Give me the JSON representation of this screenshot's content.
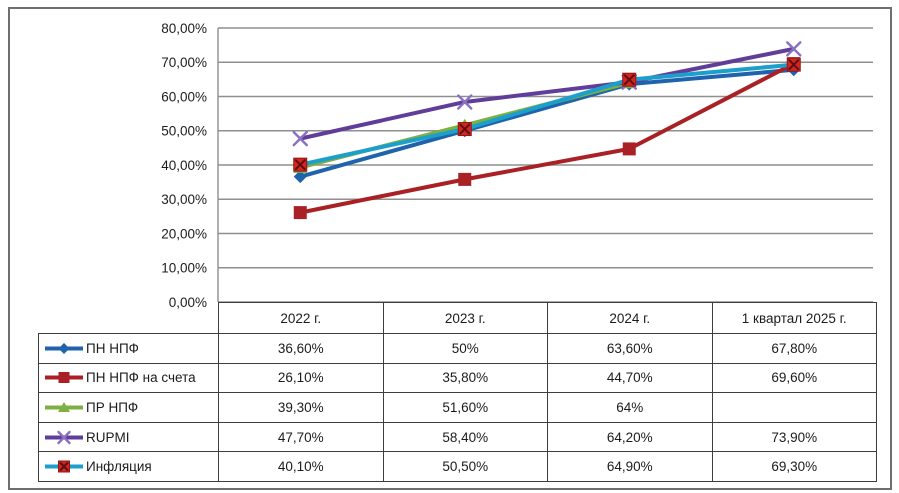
{
  "chart_data": {
    "type": "line",
    "title": "",
    "xlabel": "",
    "ylabel": "",
    "categories": [
      "2022 г.",
      "2023 г.",
      "2024 г.",
      "1 квартал 2025 г."
    ],
    "series": [
      {
        "name": "ПН НПФ",
        "color": "#1f63ad",
        "marker": "diamond",
        "marker_color": "#1f63ad",
        "values": [
          36.6,
          50,
          63.6,
          67.8
        ],
        "display": [
          "36,60%",
          "50%",
          "63,60%",
          "67,80%"
        ]
      },
      {
        "name": "ПН НПФ на счета",
        "color": "#a92125",
        "marker": "square",
        "marker_color": "#a92125",
        "values": [
          26.1,
          35.8,
          44.7,
          69.6
        ],
        "display": [
          "26,10%",
          "35,80%",
          "44,70%",
          "69,60%"
        ]
      },
      {
        "name": "ПР НПФ",
        "color": "#7cb042",
        "marker": "triangle",
        "marker_color": "#7cb042",
        "values": [
          39.3,
          51.6,
          64,
          null
        ],
        "display": [
          "39,30%",
          "51,60%",
          "64%",
          ""
        ]
      },
      {
        "name": "RUPMI",
        "color": "#5f3d99",
        "marker": "x",
        "marker_color": "#8a70c0",
        "values": [
          47.7,
          58.4,
          64.2,
          73.9
        ],
        "display": [
          "47,70%",
          "58,40%",
          "64,20%",
          "73,90%"
        ]
      },
      {
        "name": "Инфляция",
        "color": "#1d9fcc",
        "marker": "x-square",
        "marker_color": "#d62420",
        "values": [
          40.1,
          50.5,
          64.9,
          69.3
        ],
        "display": [
          "40,10%",
          "50,50%",
          "64,90%",
          "69,30%"
        ]
      }
    ],
    "ylim": [
      0,
      80
    ],
    "ytick_step": 10,
    "ytick_labels": [
      "0,00%",
      "10,00%",
      "20,00%",
      "30,00%",
      "40,00%",
      "50,00%",
      "60,00%",
      "70,00%",
      "80,00%"
    ],
    "grid": "horizontal-only",
    "legend_position": "data-table-left-column",
    "colors": {
      "gridline": "#8f8f8f",
      "table_border": "#3d3d3d",
      "frame_border": "#6f6f6f",
      "x_square_cross": "#5a1010",
      "x_square_edge": "#8c1616"
    }
  }
}
